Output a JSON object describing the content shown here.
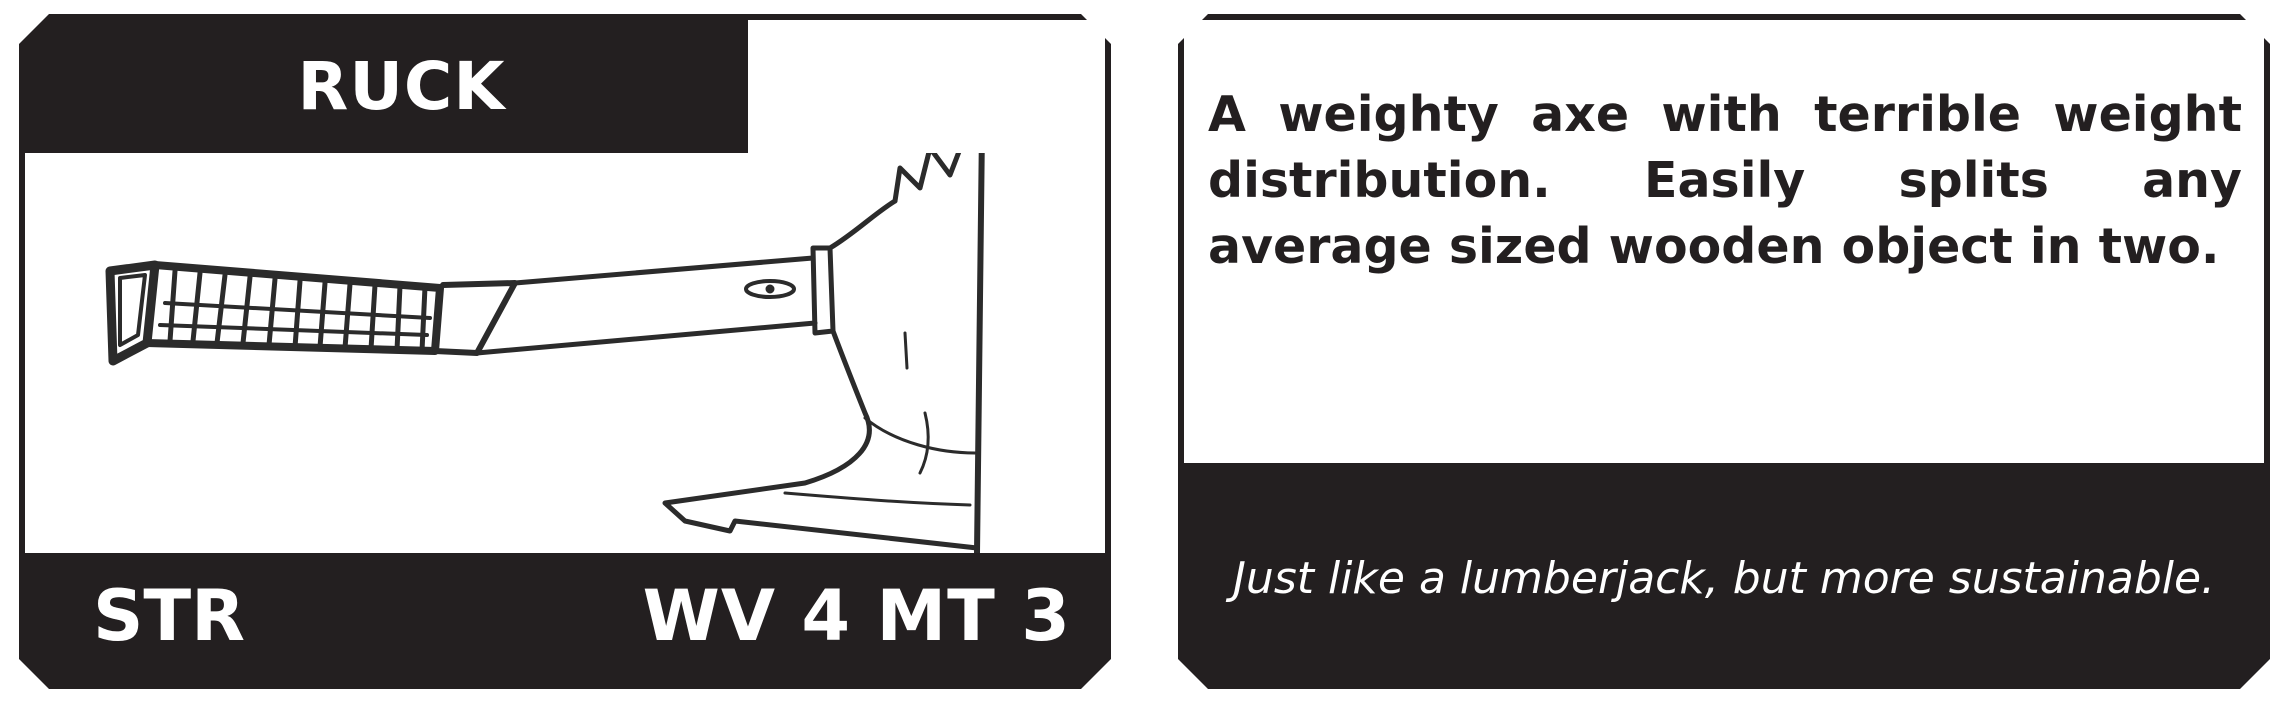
{
  "card": {
    "name": "RUCK",
    "art_icon": "axe-sketch",
    "stat_type": "STR",
    "stats": "WV 4 MT 3",
    "description": "A weighty axe with terrible weight distribution. Easily splits any average sized wooden object in two.",
    "flavor": "Just like a lumberjack, but more sustainable."
  },
  "colors": {
    "ink": "#231f20",
    "paper": "#ffffff"
  }
}
